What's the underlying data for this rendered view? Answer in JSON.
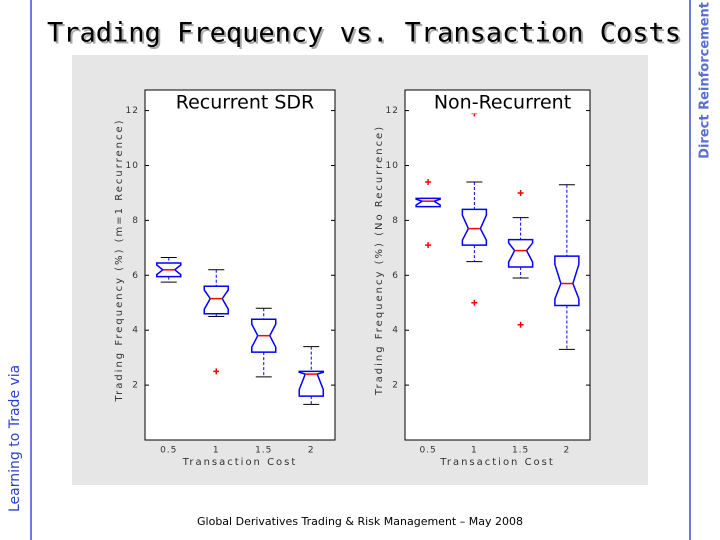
{
  "title": "Trading Frequency vs. Transaction Costs",
  "side_left": "Learning to Trade via",
  "side_right": "Direct Reinforcement",
  "footer": "Global Derivatives Trading & Risk Management – May 2008",
  "chart_data": [
    {
      "type": "box",
      "title": "Recurrent SDR",
      "xlabel": "Transaction Cost",
      "ylabel": "Trading Frequency (%) (m=1 Recurrence)",
      "categories": [
        "0.5",
        "1",
        "1.5",
        "2"
      ],
      "boxes": [
        {
          "low": 5.75,
          "q1": 5.95,
          "median": 6.2,
          "q3": 6.45,
          "high": 6.65,
          "outliers": []
        },
        {
          "low": 4.5,
          "q1": 4.6,
          "median": 5.15,
          "q3": 5.6,
          "high": 6.2,
          "outliers": [
            2.5
          ]
        },
        {
          "low": 2.3,
          "q1": 3.2,
          "median": 3.8,
          "q3": 4.4,
          "high": 4.8,
          "outliers": []
        },
        {
          "low": 1.3,
          "q1": 1.6,
          "median": 2.4,
          "q3": 2.5,
          "high": 3.4,
          "outliers": []
        }
      ],
      "box_color": "#0000ff",
      "median_color": "#ff0000",
      "outlier_color": "#ff0000",
      "ylim": [
        0,
        12.75
      ],
      "yticks": [
        2,
        4,
        6,
        8,
        10,
        12
      ]
    },
    {
      "type": "box",
      "title": "Non-Recurrent",
      "xlabel": "Transaction Cost",
      "ylabel": "Trading Frequency (%) (No Recurrence)",
      "categories": [
        "0.5",
        "1",
        "1.5",
        "2"
      ],
      "boxes": [
        {
          "low": 8.5,
          "q1": 8.5,
          "median": 8.7,
          "q3": 8.8,
          "high": 8.8,
          "outliers": [
            9.4,
            7.1
          ]
        },
        {
          "low": 6.5,
          "q1": 7.1,
          "median": 7.7,
          "q3": 8.4,
          "high": 9.4,
          "outliers": [
            11.9,
            5.0
          ]
        },
        {
          "low": 5.9,
          "q1": 6.3,
          "median": 6.9,
          "q3": 7.3,
          "high": 8.1,
          "outliers": [
            9.0,
            4.2
          ]
        },
        {
          "low": 3.3,
          "q1": 4.9,
          "median": 5.7,
          "q3": 6.7,
          "high": 9.3,
          "outliers": []
        }
      ],
      "box_color": "#0000ff",
      "median_color": "#ff0000",
      "outlier_color": "#ff0000",
      "ylim": [
        0,
        12.75
      ],
      "yticks": [
        2,
        4,
        6,
        8,
        10,
        12
      ]
    }
  ]
}
